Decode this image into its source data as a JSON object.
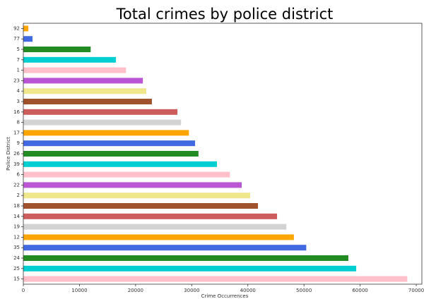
{
  "chart_data": {
    "type": "barh",
    "title": "Total crimes by police district",
    "xlabel": "Crime Occurrences",
    "ylabel": "Police District",
    "categories": [
      "92",
      "77",
      "5",
      "7",
      "1",
      "23",
      "4",
      "3",
      "16",
      "8",
      "17",
      "9",
      "26",
      "39",
      "6",
      "22",
      "2",
      "18",
      "14",
      "19",
      "12",
      "35",
      "24",
      "25",
      "15"
    ],
    "values": [
      900,
      1640,
      12000,
      16500,
      18300,
      21300,
      21900,
      22900,
      27450,
      28100,
      29500,
      30600,
      31200,
      34500,
      36800,
      38900,
      40400,
      41800,
      45200,
      46850,
      48200,
      50400,
      57900,
      59300,
      68400
    ],
    "colors": [
      "#ffa500",
      "#4169e1",
      "#228b22",
      "#00ced1",
      "#ffc0cb",
      "#ba55d3",
      "#f0e68c",
      "#a0522d",
      "#cd5c5c",
      "#d3d3d3",
      "#ffa500",
      "#4169e1",
      "#228b22",
      "#00ced1",
      "#ffc0cb",
      "#ba55d3",
      "#f0e68c",
      "#a0522d",
      "#cd5c5c",
      "#d3d3d3",
      "#ffa500",
      "#4169e1",
      "#228b22",
      "#00ced1",
      "#ffc0cb"
    ],
    "xlim": [
      0,
      71000
    ],
    "xticks": [
      0,
      10000,
      20000,
      30000,
      40000,
      50000,
      60000,
      70000
    ]
  }
}
